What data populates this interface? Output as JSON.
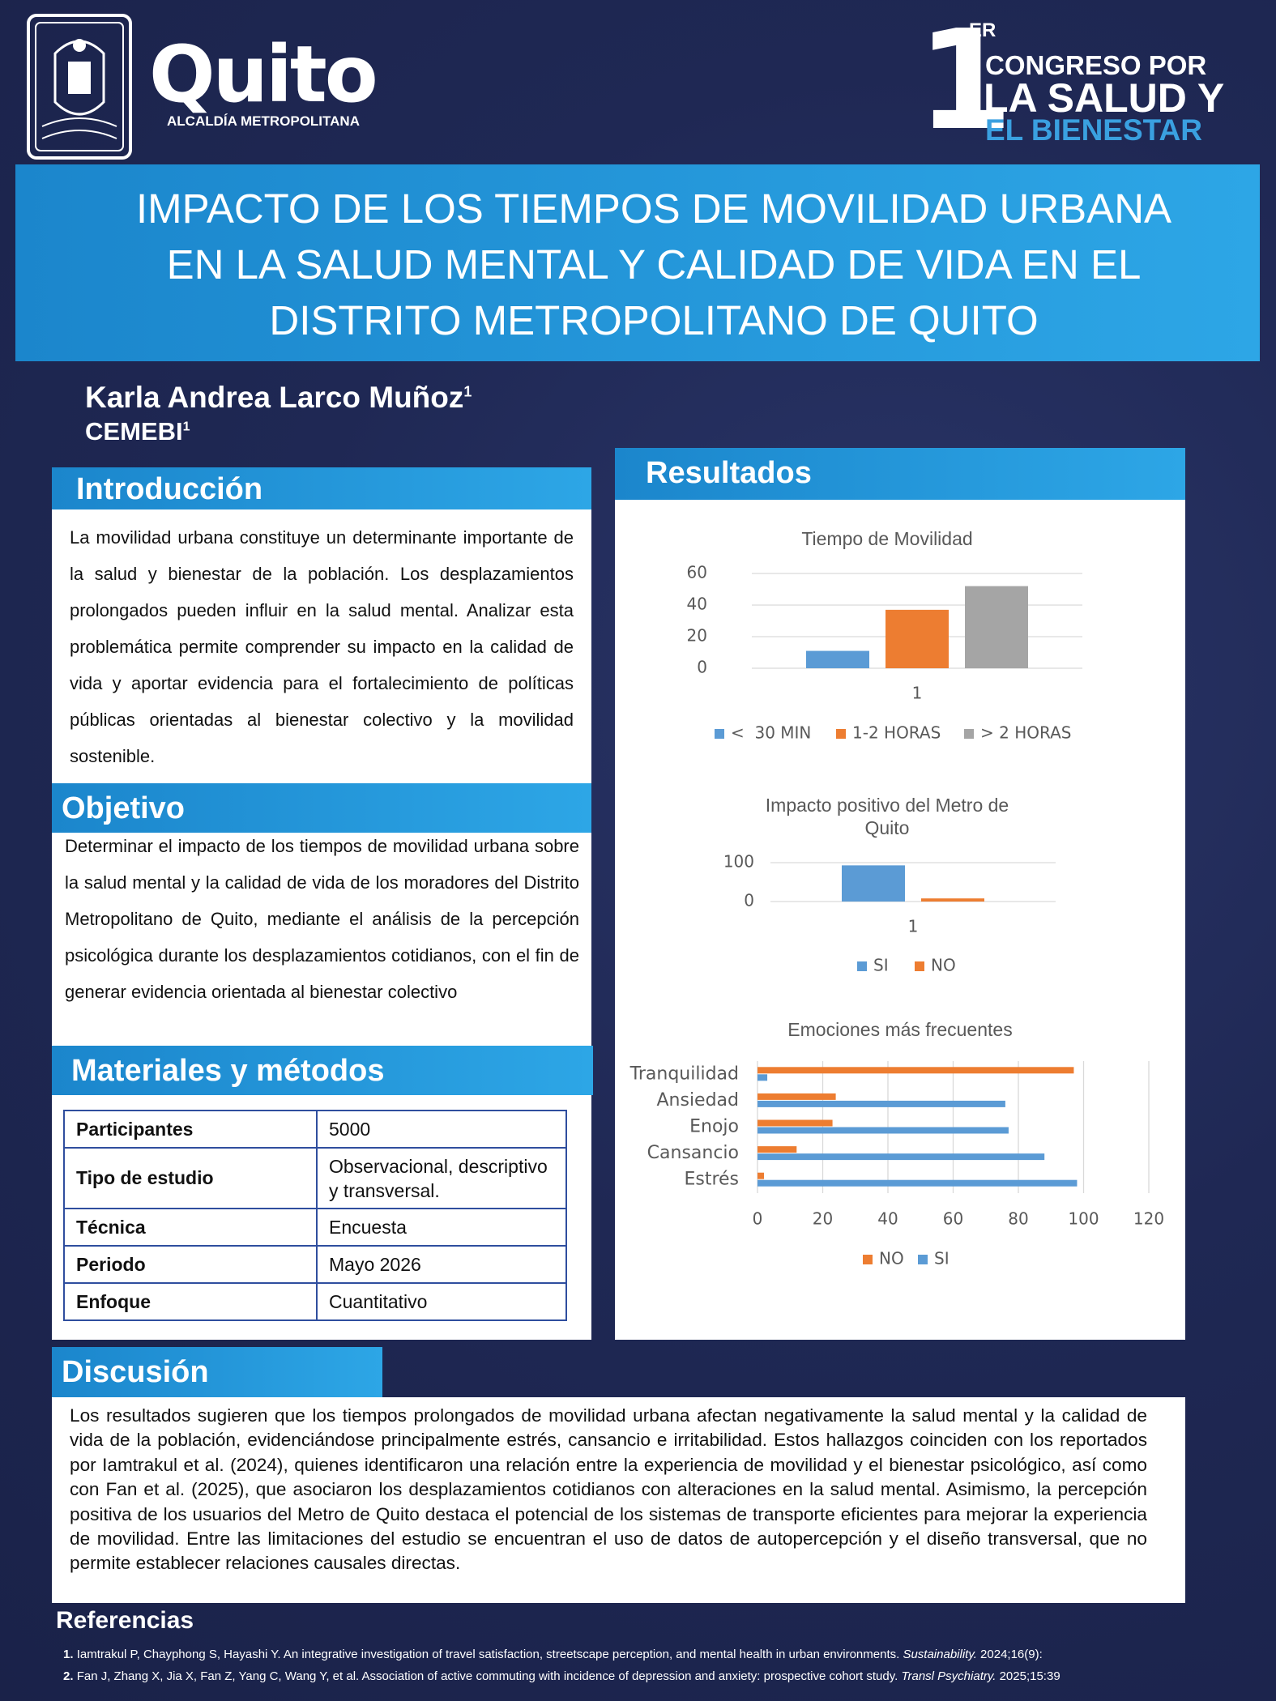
{
  "header": {
    "logo_name": "Quito",
    "logo_sub": "ALCALDÍA METROPOLITANA",
    "congress_number": "1",
    "congress_sup": "ER",
    "congress_line1": "CONGRESO POR",
    "congress_line2": "LA SALUD Y",
    "congress_line3": "EL BIENESTAR"
  },
  "title_lines": [
    "IMPACTO DE LOS TIEMPOS DE MOVILIDAD URBANA",
    "EN LA SALUD MENTAL Y CALIDAD DE VIDA EN EL",
    "DISTRITO METROPOLITANO DE QUITO"
  ],
  "author": {
    "name": "Karla Andrea Larco Muñoz",
    "name_sup": "1",
    "affiliation": "CEMEBI",
    "affiliation_sup": "1"
  },
  "introduction": {
    "heading": "Introducción",
    "body": "La movilidad urbana constituye un determinante importante de la salud y bienestar de la población. Los desplazamientos prolongados pueden influir en la salud mental. Analizar esta problemática permite comprender su impacto en la calidad de vida y aportar evidencia para el fortalecimiento de políticas públicas orientadas al bienestar colectivo y la movilidad sostenible."
  },
  "objective": {
    "heading": "Objetivo",
    "body": "Determinar el impacto de los tiempos de movilidad urbana sobre la salud mental y la calidad de vida de los moradores del Distrito Metropolitano de Quito, mediante el análisis de la percepción psicológica durante los desplazamientos cotidianos, con el fin de generar evidencia orientada al bienestar colectivo"
  },
  "methods": {
    "heading": "Materiales y métodos",
    "table": {
      "rows": [
        [
          "Participantes",
          "5000"
        ],
        [
          "Tipo de estudio",
          "Observacional, descriptivo y transversal."
        ],
        [
          "Técnica",
          "Encuesta"
        ],
        [
          "Periodo",
          "Mayo 2026"
        ],
        [
          "Enfoque",
          "Cuantitativo"
        ]
      ]
    }
  },
  "results": {
    "heading": "Resultados"
  },
  "discussion": {
    "heading": "Discusión",
    "body": "Los resultados sugieren que los tiempos prolongados de movilidad urbana afectan negativamente la salud mental y la calidad de vida de la población, evidenciándose principalmente estrés, cansancio e irritabilidad. Estos hallazgos coinciden con los reportados por Iamtrakul et al. (2024), quienes identificaron una relación entre la experiencia de movilidad y el bienestar psicológico, así como con Fan et al. (2025), que asociaron los desplazamientos cotidianos con alteraciones en la salud mental. Asimismo, la percepción positiva de los usuarios del Metro de Quito destaca el potencial de los sistemas de transporte eficientes para mejorar la experiencia de movilidad. Entre las limitaciones del estudio se encuentran el uso de datos de autopercepción y el diseño transversal, que no permite establecer relaciones causales directas."
  },
  "references": {
    "heading": "Referencias",
    "items": [
      {
        "number": "1.",
        "text": "Iamtrakul P, Chayphong S, Hayashi Y. An integrative investigation of travel satisfaction, streetscape perception, and mental health in urban environments. ",
        "journal": "Sustainability.",
        "tail": " 2024;16(9):"
      },
      {
        "number": "2.",
        "text": "Fan J, Zhang X, Jia X, Fan Z, Yang C, Wang Y, et al. Association of active commuting with incidence of depression and anxiety: prospective cohort study. ",
        "journal": "Transl Psychiatry.",
        "tail": " 2025;15:39"
      }
    ]
  },
  "chart_data": [
    {
      "type": "bar",
      "title": "Tiempo de Movilidad",
      "categories": [
        "1"
      ],
      "series": [
        {
          "name": "<  30 MIN",
          "color": "#5b9bd5",
          "values": [
            11
          ]
        },
        {
          "name": "1-2 HORAS",
          "color": "#ed7d31",
          "values": [
            37
          ]
        },
        {
          "name": "> 2 HORAS",
          "color": "#a5a5a5",
          "values": [
            52
          ]
        }
      ],
      "ylim": [
        0,
        60
      ],
      "yticks": [
        0,
        20,
        40,
        60
      ],
      "grid": true,
      "legend": "bottom"
    },
    {
      "type": "bar",
      "title": "Impacto positivo del Metro de Quito",
      "categories": [
        "1"
      ],
      "series": [
        {
          "name": "SI",
          "color": "#5b9bd5",
          "values": [
            93
          ]
        },
        {
          "name": "NO",
          "color": "#ed7d31",
          "values": [
            8
          ]
        }
      ],
      "ylim": [
        0,
        100
      ],
      "yticks": [
        0,
        100
      ],
      "grid": true,
      "legend": "bottom"
    },
    {
      "type": "bar",
      "orientation": "horizontal",
      "title": "Emociones más frecuentes",
      "categories": [
        "Tranquilidad",
        "Ansiedad",
        "Enojo",
        "Cansancio",
        "Estrés"
      ],
      "series": [
        {
          "name": "NO",
          "color": "#ed7d31",
          "values": [
            97,
            24,
            23,
            12,
            2
          ]
        },
        {
          "name": "SI",
          "color": "#5b9bd5",
          "values": [
            3,
            76,
            77,
            88,
            98
          ]
        }
      ],
      "xlim": [
        0,
        120
      ],
      "xticks": [
        0,
        20,
        40,
        60,
        80,
        100,
        120
      ],
      "grid": true,
      "legend": "bottom"
    }
  ]
}
